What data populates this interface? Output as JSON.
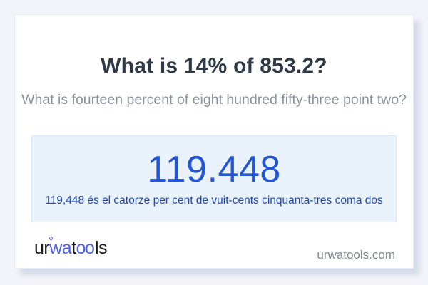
{
  "question": {
    "title": "What is 14% of 853.2?",
    "subtitle": "What is fourteen percent of eight hundred fifty-three point two?"
  },
  "answer": {
    "value": "119.448",
    "caption": "119,448 és el catorze per cent de vuit-cents cinquanta-tres coma dos"
  },
  "footer": {
    "logo": {
      "text": "urwatools",
      "segments": [
        {
          "text": "ur"
        },
        {
          "text": "wa"
        },
        {
          "text": "t"
        },
        {
          "text": "oo"
        },
        {
          "text": "ls"
        }
      ]
    },
    "domain": "urwatools.com"
  },
  "colors": {
    "page_bg": "#f2f4f9",
    "card_bg": "#ffffff",
    "title_text": "#2e3947",
    "subtitle_text": "#8d939e",
    "answer_box_bg": "#e9f1fb",
    "answer_value": "#2356d6",
    "answer_caption": "#2149b0",
    "logo_dark": "#17181a",
    "logo_blue": "#4f61e6",
    "domain_text": "#83888f",
    "card_shadow": "#ccd3e5"
  }
}
